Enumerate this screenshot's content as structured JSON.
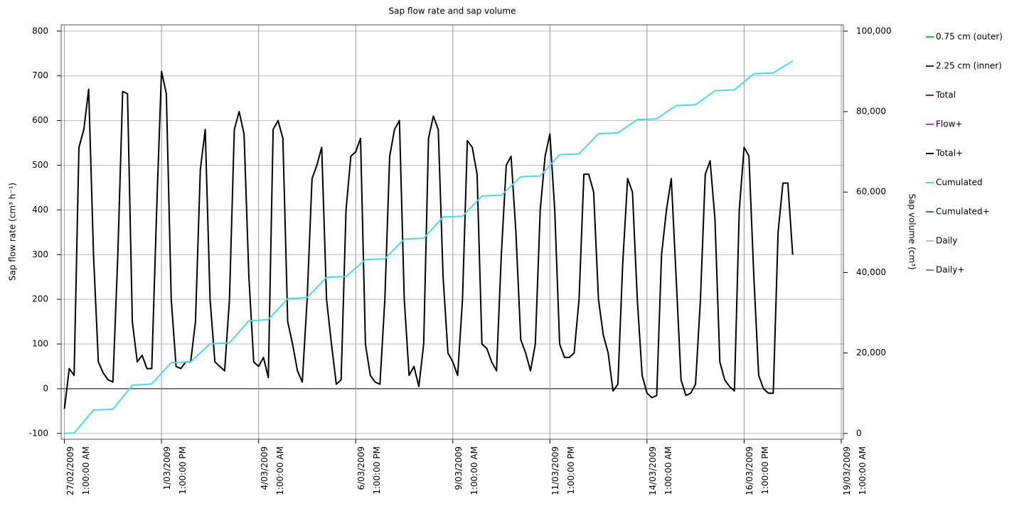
{
  "chart_data": {
    "type": "line",
    "title": "Sap flow rate and sap volume",
    "ylabel": "Sap flow rate (cm³ h⁻¹)",
    "y2label": "Sap volume (cm³)",
    "xlim": [
      "2009-02-26T23:00",
      "2009-03-19T02:20"
    ],
    "xticks": [
      {
        "value": "2009-02-27T01:00",
        "label": "27/02/2009\n1:00:00 AM"
      },
      {
        "value": "2009-03-01T13:00",
        "label": "1/03/2009\n1:00:00 PM"
      },
      {
        "value": "2009-03-04T01:00",
        "label": "4/03/2009\n1:00:00 AM"
      },
      {
        "value": "2009-03-06T13:00",
        "label": "6/03/2009\n1:00:00 PM"
      },
      {
        "value": "2009-03-09T01:00",
        "label": "9/03/2009\n1:00:00 AM"
      },
      {
        "value": "2009-03-11T13:00",
        "label": "11/03/2009\n1:00:00 PM"
      },
      {
        "value": "2009-03-14T01:00",
        "label": "14/03/2009\n1:00:00 AM"
      },
      {
        "value": "2009-03-16T13:00",
        "label": "16/03/2009\n1:00:00 PM"
      },
      {
        "value": "2009-03-19T01:00",
        "label": "19/03/2009\n1:00:00 AM"
      }
    ],
    "ylim": [
      -113,
      814
    ],
    "yticks": [
      -100,
      0,
      100,
      200,
      300,
      400,
      500,
      600,
      700,
      800
    ],
    "y2lim": [
      -1444,
      101556
    ],
    "y2ticks": [
      0,
      {
        "value": 20000,
        "label": "20,000"
      },
      {
        "value": 40000,
        "label": "40,000"
      },
      {
        "value": 60000,
        "label": "60,000"
      },
      {
        "value": 80000,
        "label": "80,000"
      },
      {
        "value": 100000,
        "label": "100,000"
      }
    ],
    "grid": true,
    "legend": "right",
    "series": [
      {
        "name": "0.75 cm (outer)",
        "color": "#22cc22"
      },
      {
        "name": "2.25 cm (inner)",
        "color": "#1a1a99"
      },
      {
        "name": "Total",
        "color": "#7a1f8a"
      },
      {
        "name": "Flow+",
        "color": "#dd33dd"
      },
      {
        "name": "Total+",
        "color": "#000000",
        "x": [
          "2009-02-27T01:00",
          "2009-02-27T04:00",
          "2009-02-27T07:00",
          "2009-02-27T10:00",
          "2009-02-27T13:00",
          "2009-02-27T16:00",
          "2009-02-27T19:00",
          "2009-02-27T22:00",
          "2009-02-28T01:00",
          "2009-02-28T04:00",
          "2009-02-28T07:00",
          "2009-02-28T10:00",
          "2009-02-28T13:00",
          "2009-02-28T16:00",
          "2009-02-28T19:00",
          "2009-02-28T22:00",
          "2009-03-01T01:00",
          "2009-03-01T04:00",
          "2009-03-01T07:00",
          "2009-03-01T10:00",
          "2009-03-01T13:00",
          "2009-03-01T16:00",
          "2009-03-01T19:00",
          "2009-03-01T22:00",
          "2009-03-02T01:00",
          "2009-03-02T04:00",
          "2009-03-02T07:00",
          "2009-03-02T10:00",
          "2009-03-02T13:00",
          "2009-03-02T16:00",
          "2009-03-02T19:00",
          "2009-03-02T22:00",
          "2009-03-03T01:00",
          "2009-03-03T04:00",
          "2009-03-03T07:00",
          "2009-03-03T10:00",
          "2009-03-03T13:00",
          "2009-03-03T16:00",
          "2009-03-03T19:00",
          "2009-03-03T22:00",
          "2009-03-04T01:00",
          "2009-03-04T04:00",
          "2009-03-04T07:00",
          "2009-03-04T10:00",
          "2009-03-04T13:00",
          "2009-03-04T16:00",
          "2009-03-04T19:00",
          "2009-03-04T22:00",
          "2009-03-05T01:00",
          "2009-03-05T04:00",
          "2009-03-05T07:00",
          "2009-03-05T10:00",
          "2009-03-05T13:00",
          "2009-03-05T16:00",
          "2009-03-05T19:00",
          "2009-03-05T22:00",
          "2009-03-06T01:00",
          "2009-03-06T04:00",
          "2009-03-06T07:00",
          "2009-03-06T10:00",
          "2009-03-06T13:00",
          "2009-03-06T16:00",
          "2009-03-06T19:00",
          "2009-03-06T22:00",
          "2009-03-07T01:00",
          "2009-03-07T04:00",
          "2009-03-07T07:00",
          "2009-03-07T10:00",
          "2009-03-07T13:00",
          "2009-03-07T16:00",
          "2009-03-07T19:00",
          "2009-03-07T22:00",
          "2009-03-08T01:00",
          "2009-03-08T04:00",
          "2009-03-08T07:00",
          "2009-03-08T10:00",
          "2009-03-08T13:00",
          "2009-03-08T16:00",
          "2009-03-08T19:00",
          "2009-03-08T22:00",
          "2009-03-09T01:00",
          "2009-03-09T04:00",
          "2009-03-09T07:00",
          "2009-03-09T10:00",
          "2009-03-09T13:00",
          "2009-03-09T16:00",
          "2009-03-09T19:00",
          "2009-03-09T22:00",
          "2009-03-10T01:00",
          "2009-03-10T04:00",
          "2009-03-10T07:00",
          "2009-03-10T10:00",
          "2009-03-10T13:00",
          "2009-03-10T16:00",
          "2009-03-10T19:00",
          "2009-03-10T22:00",
          "2009-03-11T01:00",
          "2009-03-11T04:00",
          "2009-03-11T07:00",
          "2009-03-11T10:00",
          "2009-03-11T13:00",
          "2009-03-11T16:00",
          "2009-03-11T19:00",
          "2009-03-11T22:00",
          "2009-03-12T01:00",
          "2009-03-12T04:00",
          "2009-03-12T07:00",
          "2009-03-12T10:00",
          "2009-03-12T13:00",
          "2009-03-12T16:00",
          "2009-03-12T19:00",
          "2009-03-12T22:00",
          "2009-03-13T01:00",
          "2009-03-13T04:00",
          "2009-03-13T07:00",
          "2009-03-13T10:00",
          "2009-03-13T13:00",
          "2009-03-13T16:00",
          "2009-03-13T19:00",
          "2009-03-13T22:00",
          "2009-03-14T01:00",
          "2009-03-14T04:00",
          "2009-03-14T07:00",
          "2009-03-14T10:00",
          "2009-03-14T13:00",
          "2009-03-14T16:00",
          "2009-03-14T19:00",
          "2009-03-14T22:00",
          "2009-03-15T01:00",
          "2009-03-15T04:00",
          "2009-03-15T07:00",
          "2009-03-15T10:00",
          "2009-03-15T13:00",
          "2009-03-15T16:00",
          "2009-03-15T19:00",
          "2009-03-15T22:00",
          "2009-03-16T01:00",
          "2009-03-16T04:00",
          "2009-03-16T07:00",
          "2009-03-16T10:00",
          "2009-03-16T13:00",
          "2009-03-16T16:00",
          "2009-03-16T19:00",
          "2009-03-16T22:00",
          "2009-03-17T01:00",
          "2009-03-17T04:00",
          "2009-03-17T07:00",
          "2009-03-17T10:00",
          "2009-03-17T13:00",
          "2009-03-17T16:00",
          "2009-03-17T19:00"
        ],
        "values": [
          -45,
          45,
          30,
          540,
          580,
          670,
          300,
          60,
          35,
          20,
          15,
          300,
          665,
          660,
          150,
          60,
          75,
          45,
          45,
          400,
          710,
          660,
          200,
          50,
          45,
          60,
          60,
          150,
          490,
          580,
          200,
          60,
          50,
          40,
          200,
          580,
          620,
          570,
          250,
          60,
          50,
          70,
          25,
          580,
          600,
          560,
          150,
          100,
          40,
          15,
          200,
          470,
          500,
          540,
          200,
          100,
          10,
          20,
          400,
          520,
          530,
          560,
          100,
          30,
          15,
          10,
          200,
          520,
          580,
          600,
          200,
          30,
          50,
          5,
          100,
          560,
          610,
          580,
          250,
          80,
          60,
          30,
          200,
          555,
          540,
          480,
          100,
          90,
          60,
          40,
          300,
          500,
          520,
          350,
          110,
          80,
          40,
          100,
          400,
          520,
          570,
          400,
          100,
          70,
          70,
          80,
          200,
          480,
          480,
          440,
          200,
          120,
          80,
          -5,
          10,
          280,
          470,
          440,
          200,
          30,
          -10,
          -20,
          -15,
          300,
          400,
          470,
          250,
          20,
          -15,
          -10,
          10,
          200,
          480,
          510,
          380,
          60,
          20,
          5,
          -5,
          400,
          540,
          520,
          250,
          30,
          0,
          -10,
          -10,
          350,
          460,
          460,
          300
        ]
      },
      {
        "name": "Cumulated",
        "color": "#44e0e8",
        "axis": "y2",
        "x": [
          "2009-02-27T01:00",
          "2009-02-27T07:00",
          "2009-02-27T19:00",
          "2009-02-28T01:00",
          "2009-02-28T07:00",
          "2009-02-28T19:00",
          "2009-03-01T01:00",
          "2009-03-01T07:00",
          "2009-03-01T19:00",
          "2009-03-02T01:00",
          "2009-03-02T07:00",
          "2009-03-02T19:00",
          "2009-03-03T01:00",
          "2009-03-03T07:00",
          "2009-03-03T19:00",
          "2009-03-04T01:00",
          "2009-03-04T07:00",
          "2009-03-04T19:00",
          "2009-03-05T01:00",
          "2009-03-05T07:00",
          "2009-03-05T19:00",
          "2009-03-06T01:00",
          "2009-03-06T07:00",
          "2009-03-06T19:00",
          "2009-03-07T01:00",
          "2009-03-07T07:00",
          "2009-03-07T19:00",
          "2009-03-08T01:00",
          "2009-03-08T07:00",
          "2009-03-08T19:00",
          "2009-03-09T01:00",
          "2009-03-09T07:00",
          "2009-03-09T19:00",
          "2009-03-10T01:00",
          "2009-03-10T07:00",
          "2009-03-10T19:00",
          "2009-03-11T01:00",
          "2009-03-11T07:00",
          "2009-03-11T19:00",
          "2009-03-12T01:00",
          "2009-03-12T07:00",
          "2009-03-12T19:00",
          "2009-03-13T01:00",
          "2009-03-13T07:00",
          "2009-03-13T19:00",
          "2009-03-14T01:00",
          "2009-03-14T07:00",
          "2009-03-14T19:00",
          "2009-03-15T01:00",
          "2009-03-15T07:00",
          "2009-03-15T19:00",
          "2009-03-16T01:00",
          "2009-03-16T07:00",
          "2009-03-16T19:00",
          "2009-03-17T01:00",
          "2009-03-17T07:00",
          "2009-03-17T19:00"
        ],
        "values": [
          0,
          100,
          5800,
          5900,
          6000,
          12000,
          12100,
          12300,
          17600,
          17700,
          17800,
          22300,
          22400,
          22500,
          28000,
          28100,
          28300,
          33500,
          33600,
          33800,
          38800,
          38900,
          39000,
          43200,
          43300,
          43400,
          48300,
          48400,
          48500,
          53800,
          53900,
          54000,
          59000,
          59100,
          59200,
          63800,
          63900,
          64000,
          69300,
          69400,
          69500,
          74500,
          74600,
          74700,
          78000,
          78100,
          78200,
          81500,
          81600,
          81700,
          85200,
          85300,
          85400,
          89400,
          89500,
          89600,
          92600
        ]
      },
      {
        "name": "Cumulated+",
        "color": "#1a8a80"
      },
      {
        "name": "Daily",
        "color": "#c0c0c0"
      },
      {
        "name": "Daily+",
        "color": "#888888"
      }
    ]
  }
}
